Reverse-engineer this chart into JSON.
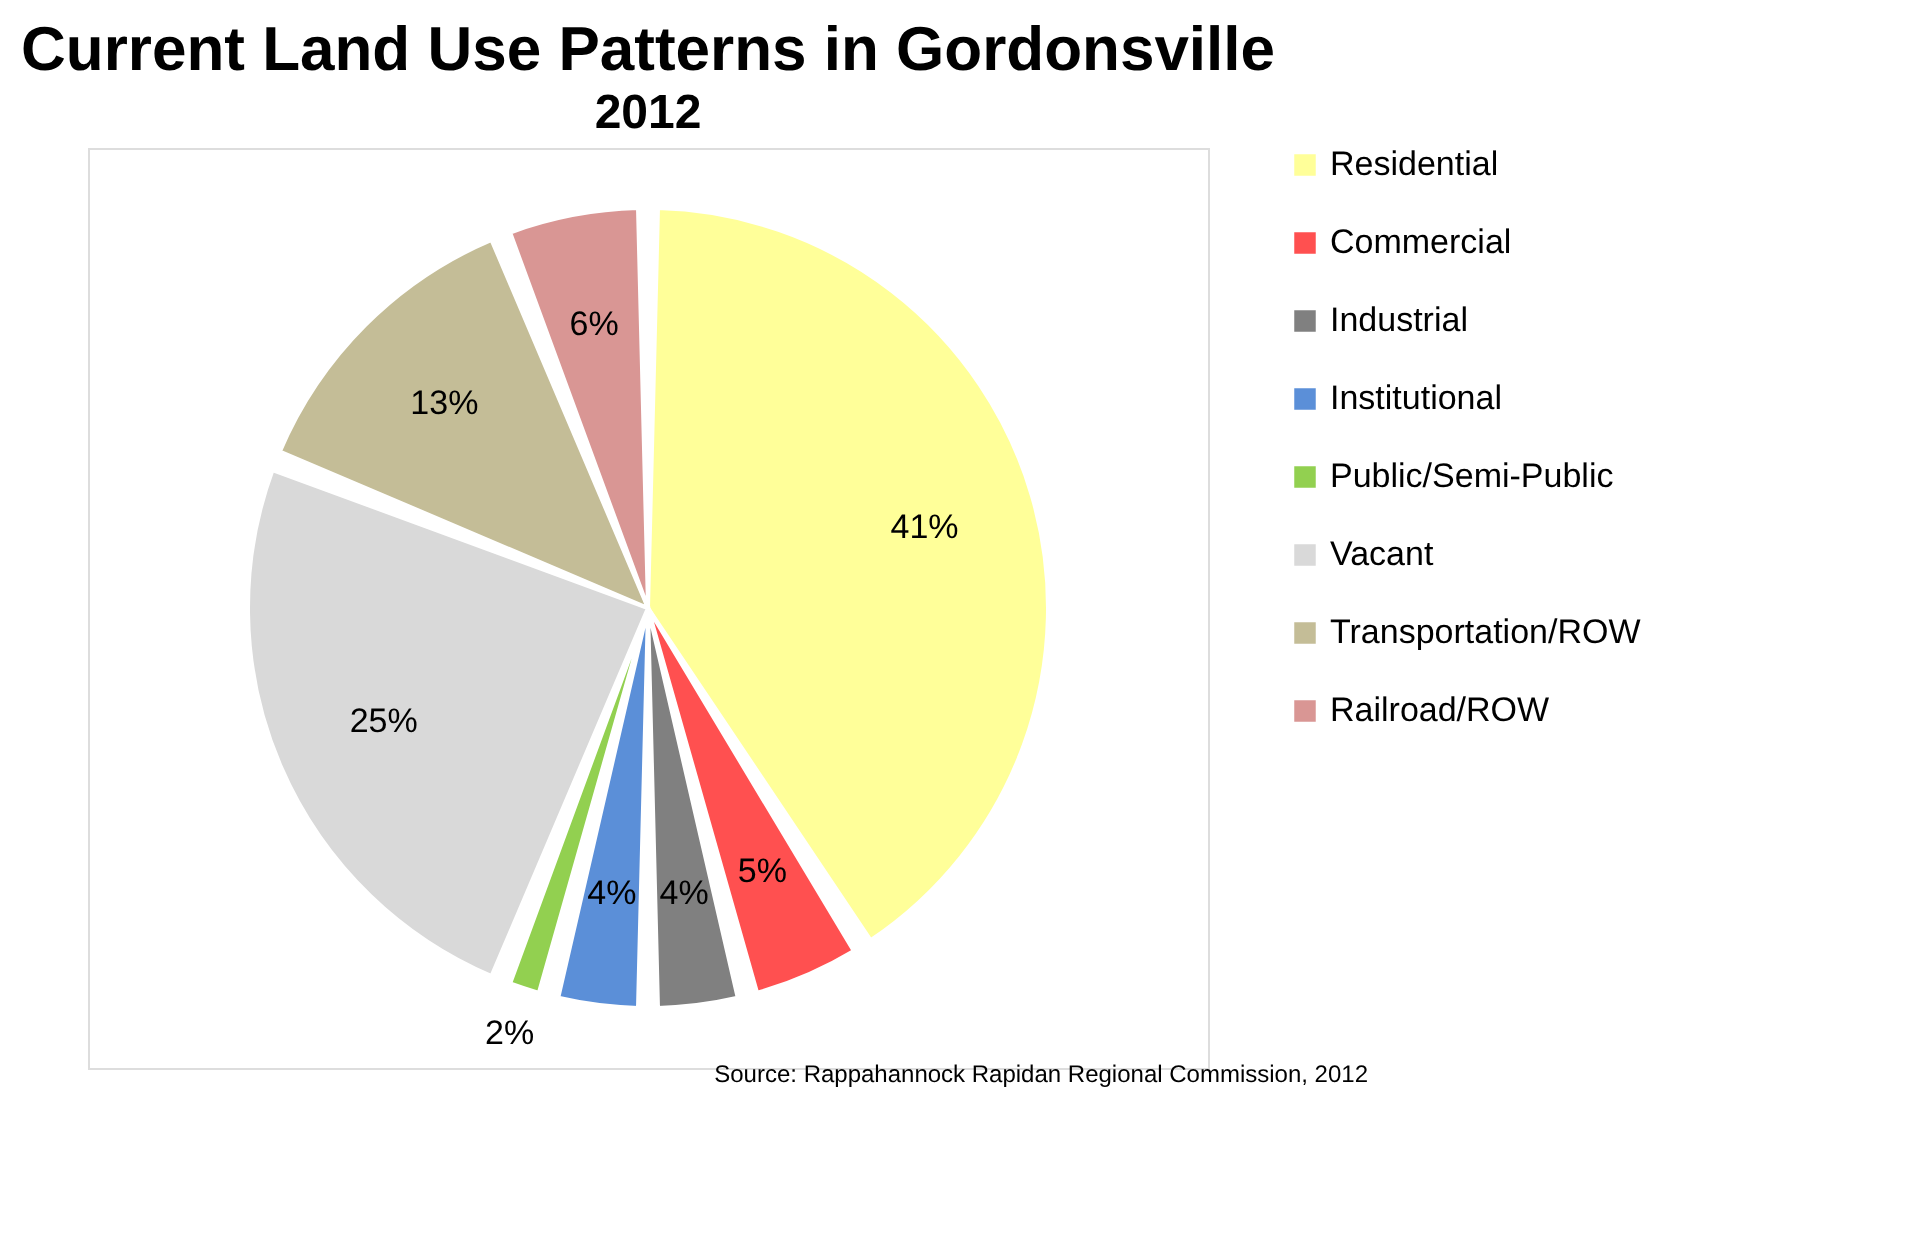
{
  "chart_data": {
    "type": "pie",
    "title": "Current Land Use Patterns in Gordonsville",
    "subtitle": "2012",
    "categories": [
      "Residential",
      "Commercial",
      "Industrial",
      "Institutional",
      "Public/Semi-Public",
      "Vacant",
      "Transportation/ROW",
      "Railroad/ROW"
    ],
    "values": [
      41,
      5,
      4,
      4,
      2,
      25,
      13,
      6
    ],
    "value_labels": [
      "41%",
      "5%",
      "4%",
      "4%",
      "2%",
      "25%",
      "13%",
      "6%"
    ],
    "colors": [
      "#ffff99",
      "#ff5050",
      "#808080",
      "#5b8fd8",
      "#92d050",
      "#d9d9d9",
      "#c4bd97",
      "#d99694"
    ],
    "legend": "right",
    "annotations": [
      "Source: Rappahannock Rapidan Regional Commission, 2012"
    ]
  }
}
